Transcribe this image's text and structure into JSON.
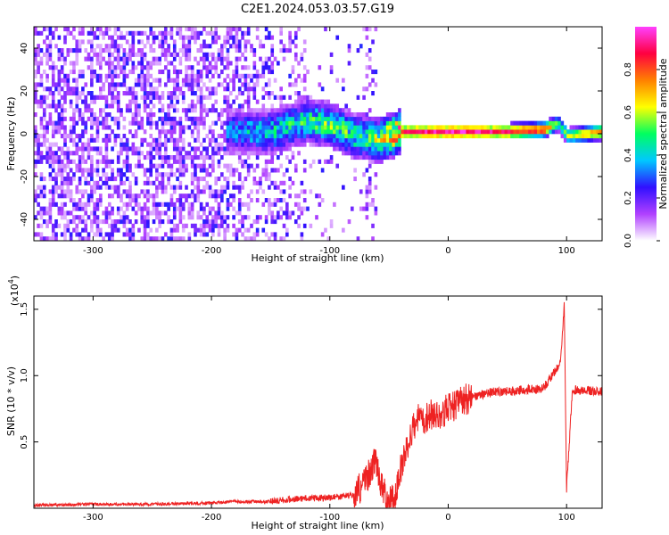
{
  "figure": {
    "title": "C2E1.2024.053.03.57.G19"
  },
  "chart_data": [
    {
      "type": "heatmap",
      "title": "C2E1.2024.053.03.57.G19",
      "xlabel": "Height of straight line (km)",
      "ylabel": "Frequency (Hz)",
      "xlim": [
        -350,
        130
      ],
      "ylim": [
        -50,
        50
      ],
      "xticks": [
        -300,
        -200,
        -100,
        0,
        100
      ],
      "yticks": [
        -40,
        -20,
        0,
        20,
        40
      ],
      "colorbar": {
        "label": "Normalized spectral amplitude",
        "range": [
          0.0,
          1.0
        ],
        "ticks": [
          "0.0",
          "0.2",
          "0.4",
          "0.6",
          "0.8"
        ],
        "colors": [
          "#ffffff",
          "#b040ff",
          "#3010ff",
          "#00c8ff",
          "#00ff60",
          "#ffff00",
          "#ff8000",
          "#ff0040",
          "#ff40ff"
        ]
      },
      "ridge": [
        {
          "x": -190,
          "y": 0,
          "amp": 0.35
        },
        {
          "x": -150,
          "y": 0,
          "amp": 0.45
        },
        {
          "x": -120,
          "y": 5,
          "amp": 0.5
        },
        {
          "x": -100,
          "y": 3,
          "amp": 0.55
        },
        {
          "x": -80,
          "y": -2,
          "amp": 0.5
        },
        {
          "x": -60,
          "y": -4,
          "amp": 0.6
        },
        {
          "x": -40,
          "y": 0,
          "amp": 0.9
        },
        {
          "x": 0,
          "y": 0,
          "amp": 1.0
        },
        {
          "x": 50,
          "y": 0,
          "amp": 0.9
        },
        {
          "x": 80,
          "y": 1,
          "amp": 0.85
        },
        {
          "x": 92,
          "y": 4,
          "amp": 0.5
        },
        {
          "x": 100,
          "y": -2,
          "amp": 0.6
        },
        {
          "x": 130,
          "y": 0,
          "amp": 0.8
        }
      ]
    },
    {
      "type": "line",
      "xlabel": "Height of straight line (km)",
      "ylabel": "SNR (10 * v/v)",
      "yscale_label": "(x10",
      "yscale_exp": "4",
      "yscale_close": ")",
      "xlim": [
        -350,
        130
      ],
      "ylim": [
        0,
        1.6
      ],
      "xticks": [
        -300,
        -200,
        -100,
        0,
        100
      ],
      "yticks": [
        "0.5",
        "1.0",
        "1.5"
      ],
      "series": [
        {
          "color": "#ee2222",
          "x": [
            -350,
            -300,
            -250,
            -200,
            -180,
            -150,
            -130,
            -100,
            -80,
            -70,
            -62,
            -55,
            -50,
            -45,
            -40,
            -35,
            -30,
            -25,
            -20,
            -15,
            -10,
            0,
            10,
            20,
            30,
            40,
            50,
            60,
            80,
            95,
            98,
            100,
            105,
            110,
            130
          ],
          "y": [
            0.02,
            0.03,
            0.03,
            0.04,
            0.05,
            0.05,
            0.07,
            0.08,
            0.1,
            0.2,
            0.35,
            0.15,
            0.03,
            0.1,
            0.3,
            0.45,
            0.6,
            0.7,
            0.65,
            0.72,
            0.68,
            0.75,
            0.8,
            0.84,
            0.86,
            0.88,
            0.88,
            0.89,
            0.9,
            1.1,
            1.55,
            0.15,
            0.9,
            0.89,
            0.88
          ]
        }
      ]
    }
  ]
}
